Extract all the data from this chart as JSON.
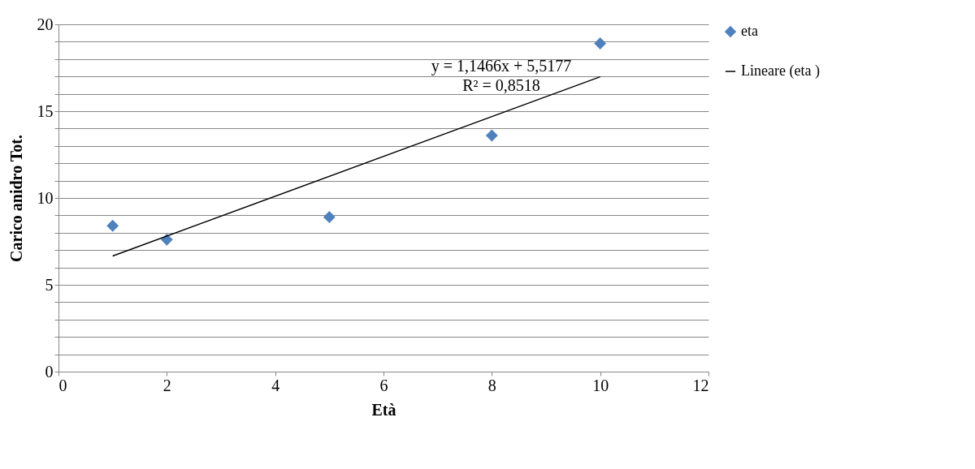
{
  "chart_data": {
    "type": "scatter",
    "xlabel": "Età",
    "ylabel": "Carico anidro Tot.",
    "x": [
      1,
      2,
      5,
      8,
      10
    ],
    "series": [
      {
        "name": "eta",
        "color": "#4f81bd",
        "marker": "diamond",
        "values": [
          8.4,
          7.6,
          8.9,
          13.6,
          18.9
        ]
      },
      {
        "name": "Lineare (eta )",
        "type": "line",
        "color": "#000000",
        "line_style": "solid",
        "x": [
          1,
          10
        ],
        "values": [
          6.66,
          16.98
        ]
      }
    ],
    "annotations": [
      "y = 1,1466x + 5,5177",
      "R² = 0,8518"
    ],
    "xlim": [
      0,
      12
    ],
    "xticks": [
      0,
      2,
      4,
      6,
      8,
      10,
      12
    ],
    "ylim": [
      0,
      20
    ],
    "yticks": [
      0,
      {
        "value": 1,
        "label": null
      },
      {
        "value": 2,
        "label": null
      },
      {
        "value": 3,
        "label": null
      },
      {
        "value": 4,
        "label": null
      },
      5,
      {
        "value": 6,
        "label": null
      },
      {
        "value": 7,
        "label": null
      },
      {
        "value": 8,
        "label": null
      },
      {
        "value": 9,
        "label": null
      },
      10,
      {
        "value": 11,
        "label": null
      },
      {
        "value": 12,
        "label": null
      },
      {
        "value": 13,
        "label": null
      },
      {
        "value": 14,
        "label": null
      },
      15,
      {
        "value": 16,
        "label": null
      },
      {
        "value": 17,
        "label": null
      },
      {
        "value": 18,
        "label": null
      },
      {
        "value": 19,
        "label": null
      },
      20
    ],
    "grid": "y",
    "legend": "right"
  }
}
